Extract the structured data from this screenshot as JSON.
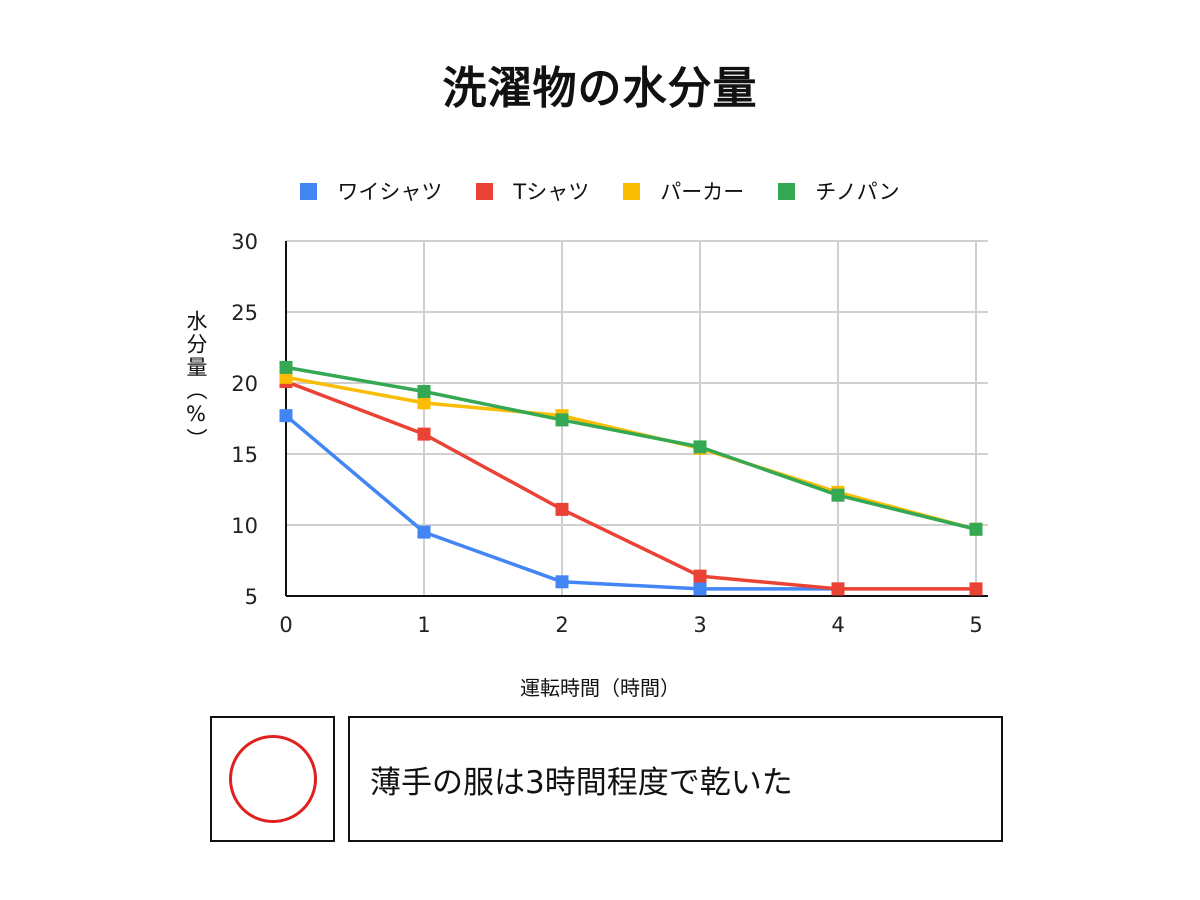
{
  "title": "洗濯物の水分量",
  "ylabel": "水分量（%）",
  "xlabel": "運転時間（時間）",
  "note": {
    "symbol": "circle-mark",
    "symbol_color": "#e0201f",
    "text": "薄手の服は3時間程度で乾いた"
  },
  "chart_data": {
    "type": "line",
    "title": "洗濯物の水分量",
    "xlabel": "運転時間（時間）",
    "ylabel": "水分量（%）",
    "x": [
      0,
      1,
      2,
      3,
      4,
      5
    ],
    "xlim": [
      0,
      5
    ],
    "ylim": [
      5,
      30
    ],
    "yticks": [
      5,
      10,
      15,
      20,
      25,
      30
    ],
    "grid": true,
    "legend_position": "top",
    "series": [
      {
        "name": "ワイシャツ",
        "color": "#4285f4",
        "values": [
          17.7,
          9.5,
          6.0,
          5.5,
          5.5,
          null
        ]
      },
      {
        "name": "Tシャツ",
        "color": "#ea4335",
        "values": [
          20.1,
          16.4,
          11.1,
          6.4,
          5.5,
          5.5
        ]
      },
      {
        "name": "パーカー",
        "color": "#fbbc04",
        "values": [
          20.4,
          18.6,
          17.7,
          15.4,
          12.3,
          9.7
        ]
      },
      {
        "name": "チノパン",
        "color": "#34a853",
        "values": [
          21.1,
          19.4,
          17.4,
          15.5,
          12.1,
          9.7
        ]
      }
    ]
  }
}
